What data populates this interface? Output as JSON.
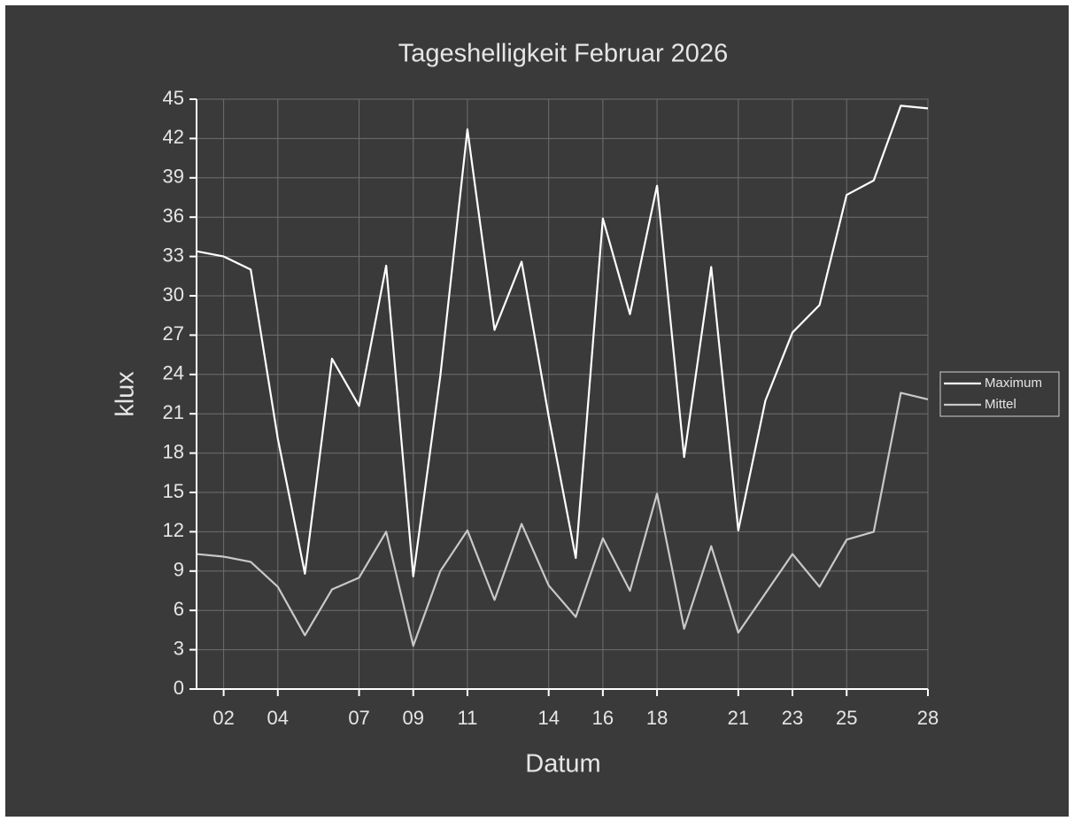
{
  "chart_data": {
    "type": "line",
    "title": "Tageshelligkeit Februar 2026",
    "x_label": "Datum",
    "y_label": "klux",
    "x": [
      1,
      2,
      3,
      4,
      5,
      6,
      7,
      8,
      9,
      10,
      11,
      12,
      13,
      14,
      15,
      16,
      17,
      18,
      19,
      20,
      21,
      22,
      23,
      24,
      25,
      26,
      27,
      28
    ],
    "series": [
      {
        "name": "Maximum",
        "color": "#ffffff",
        "values": [
          33.4,
          33.0,
          32.0,
          19.1,
          8.8,
          25.2,
          21.6,
          32.3,
          8.6,
          23.9,
          42.7,
          27.4,
          32.6,
          20.8,
          10.0,
          35.9,
          28.6,
          38.4,
          17.7,
          32.2,
          12.1,
          22.0,
          27.2,
          29.3,
          37.7,
          38.8,
          44.5,
          44.3
        ]
      },
      {
        "name": "Mittel",
        "color": "#c8c8c8",
        "values": [
          10.3,
          10.1,
          9.7,
          7.8,
          4.1,
          7.6,
          8.5,
          12.0,
          3.3,
          9.0,
          12.1,
          6.8,
          12.6,
          7.9,
          5.5,
          11.5,
          7.5,
          14.9,
          4.6,
          10.9,
          4.3,
          7.3,
          10.3,
          7.8,
          11.4,
          12.0,
          22.6,
          22.1
        ]
      }
    ],
    "xlim": [
      1,
      28
    ],
    "xticks": [
      {
        "value": 2,
        "label": "02"
      },
      {
        "value": 4,
        "label": "04"
      },
      {
        "value": 7,
        "label": "07"
      },
      {
        "value": 9,
        "label": "09"
      },
      11,
      14,
      16,
      18,
      21,
      23,
      25,
      28
    ],
    "ylim": [
      0,
      45
    ],
    "yticks": [
      0,
      3,
      6,
      9,
      12,
      15,
      18,
      21,
      24,
      27,
      30,
      33,
      36,
      39,
      42,
      45
    ],
    "grid": true,
    "legend": "right"
  }
}
